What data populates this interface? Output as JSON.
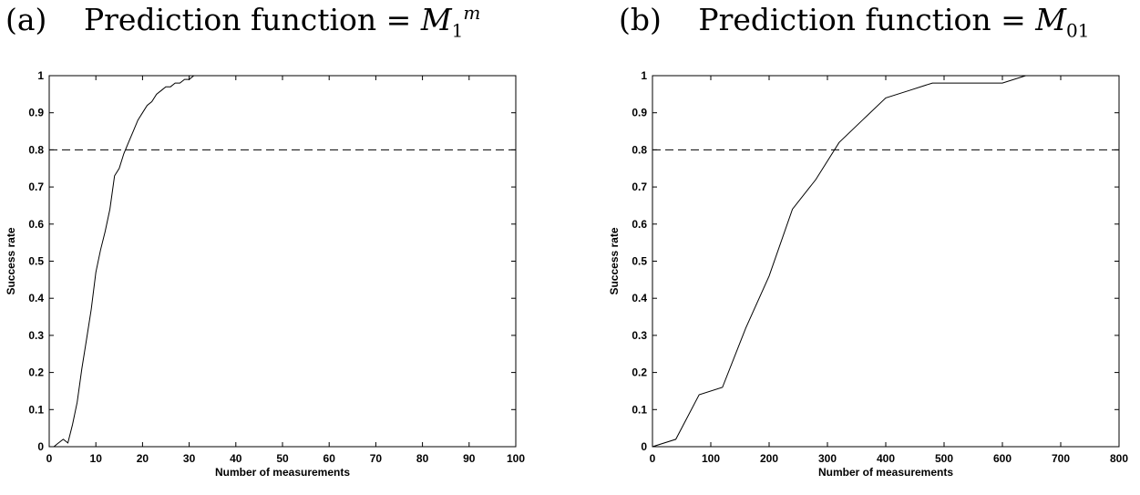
{
  "chart_data": [
    {
      "type": "line",
      "panel_label": "(a)",
      "title_prefix": "Prediction function =",
      "title_symbol": "M",
      "title_sub": "1",
      "title_sup": "m",
      "xlabel": "Number of measurements",
      "ylabel": "Success rate",
      "xlim": [
        0,
        100
      ],
      "ylim": [
        0,
        1
      ],
      "xticks": [
        0,
        10,
        20,
        30,
        40,
        50,
        60,
        70,
        80,
        90,
        100
      ],
      "yticks": [
        0,
        0.1,
        0.2,
        0.3,
        0.4,
        0.5,
        0.6,
        0.7,
        0.8,
        0.9,
        1
      ],
      "yticklabels": [
        "0",
        "0.1",
        "0.2",
        "0.3",
        "0.4",
        "0.5",
        "0.6",
        "0.7",
        "0.8",
        "0.9",
        "1"
      ],
      "threshold": 0.8,
      "threshold_style": "dashed",
      "series": [
        {
          "x": [
            1,
            2,
            3,
            4,
            5,
            6,
            7,
            8,
            9,
            10,
            11,
            12,
            13,
            14,
            15,
            16,
            17,
            18,
            19,
            20,
            21,
            22,
            23,
            24,
            25,
            26,
            27,
            28,
            29,
            30,
            31,
            32
          ],
          "y": [
            0,
            0.01,
            0.02,
            0.01,
            0.06,
            0.12,
            0.21,
            0.29,
            0.37,
            0.47,
            0.53,
            0.58,
            0.64,
            0.73,
            0.75,
            0.79,
            0.82,
            0.85,
            0.88,
            0.9,
            0.92,
            0.93,
            0.95,
            0.96,
            0.97,
            0.97,
            0.98,
            0.98,
            0.99,
            0.99,
            1,
            1
          ]
        }
      ]
    },
    {
      "type": "line",
      "panel_label": "(b)",
      "title_prefix": "Prediction function =",
      "title_symbol": "M",
      "title_sub": "01",
      "title_sup": "",
      "xlabel": "Number of measurements",
      "ylabel": "Success rate",
      "xlim": [
        0,
        800
      ],
      "ylim": [
        0,
        1
      ],
      "xticks": [
        0,
        100,
        200,
        300,
        400,
        500,
        600,
        700,
        800
      ],
      "yticks": [
        0,
        0.1,
        0.2,
        0.3,
        0.4,
        0.5,
        0.6,
        0.7,
        0.8,
        0.9,
        1
      ],
      "yticklabels": [
        "0",
        "0.1",
        "0.2",
        "0.3",
        "0.4",
        "0.5",
        "0.6",
        "0.7",
        "0.8",
        "0.9",
        "1"
      ],
      "threshold": 0.8,
      "threshold_style": "dashed",
      "series": [
        {
          "x": [
            0,
            40,
            80,
            120,
            160,
            200,
            240,
            280,
            320,
            360,
            400,
            440,
            480,
            520,
            560,
            600,
            640
          ],
          "y": [
            0,
            0.02,
            0.14,
            0.16,
            0.32,
            0.46,
            0.64,
            0.72,
            0.82,
            0.88,
            0.94,
            0.96,
            0.98,
            0.98,
            0.98,
            0.98,
            1
          ]
        }
      ]
    }
  ]
}
